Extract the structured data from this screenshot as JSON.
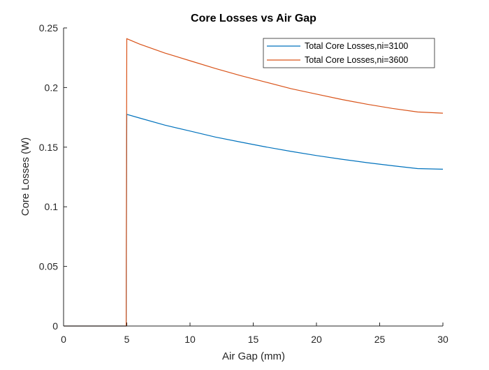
{
  "chart_data": {
    "type": "line",
    "title": "Core Losses vs Air Gap",
    "xlabel": "Air Gap (mm)",
    "ylabel": "Core Losses (W)",
    "xlim": [
      0,
      30
    ],
    "ylim": [
      0,
      0.25
    ],
    "xticks": [
      0,
      5,
      10,
      15,
      20,
      25,
      30
    ],
    "yticks": [
      0,
      0.05,
      0.1,
      0.15,
      0.2,
      0.25
    ],
    "xtick_labels": [
      "0",
      "5",
      "10",
      "15",
      "20",
      "25",
      "30"
    ],
    "ytick_labels": [
      "0",
      "0.05",
      "0.1",
      "0.15",
      "0.2",
      "0.25"
    ],
    "grid": false,
    "legend_position": "top-right",
    "series": [
      {
        "name": "Total Core Losses,ni=3100",
        "color": "#0072BD",
        "x": [
          0,
          4.95,
          5,
          6,
          8,
          10,
          12,
          14,
          16,
          18,
          20,
          22,
          24,
          26,
          28,
          30
        ],
        "y": [
          0,
          0,
          0.1775,
          0.1745,
          0.1685,
          0.1635,
          0.1585,
          0.1543,
          0.1502,
          0.1464,
          0.143,
          0.1399,
          0.137,
          0.1344,
          0.132,
          0.1315
        ]
      },
      {
        "name": "Total Core Losses,ni=3600",
        "color": "#D95319",
        "x": [
          0,
          4.95,
          5,
          6,
          8,
          10,
          12,
          14,
          16,
          18,
          20,
          22,
          24,
          26,
          28,
          30
        ],
        "y": [
          0,
          0,
          0.241,
          0.2365,
          0.229,
          0.2225,
          0.216,
          0.21,
          0.2045,
          0.199,
          0.1945,
          0.19,
          0.186,
          0.1825,
          0.1795,
          0.1785
        ]
      }
    ]
  }
}
